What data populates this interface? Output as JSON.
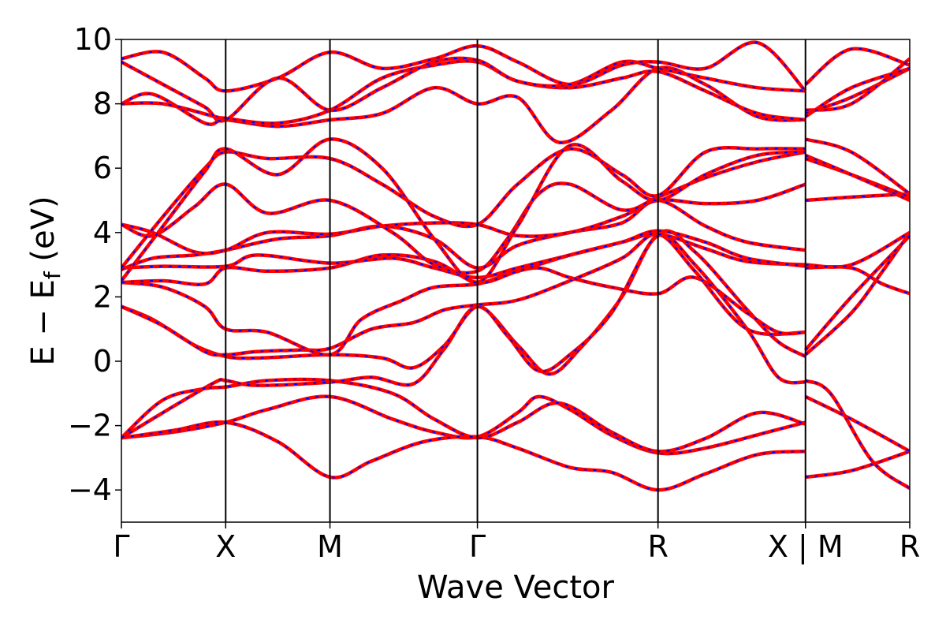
{
  "chart_data": {
    "type": "line",
    "title": "",
    "xlabel": "Wave Vector",
    "ylabel_main": "E − E",
    "ylabel_sub": "f",
    "ylabel_unit": " (eV)",
    "ylim": [
      -5,
      10
    ],
    "yticks": [
      -4,
      -2,
      0,
      2,
      4,
      6,
      8,
      10
    ],
    "ytick_labels": [
      "−4",
      "−2",
      "0",
      "2",
      "4",
      "6",
      "8",
      "10"
    ],
    "k_points": [
      {
        "label": "Γ",
        "x": 0.0
      },
      {
        "label": "X",
        "x": 1.0
      },
      {
        "label": "M",
        "x": 2.0
      },
      {
        "label": "Γ",
        "x": 3.414
      },
      {
        "label": "R",
        "x": 5.146
      },
      {
        "label": "X | M",
        "x": 6.56
      },
      {
        "label": "R",
        "x": 7.56
      }
    ],
    "grid": false,
    "legend": "none",
    "colors": {
      "series_a": "#0000ff",
      "series_b": "#ff0000"
    },
    "bands": [
      [
        [
          0,
          -2.38
        ],
        [
          0.5,
          -2.2
        ],
        [
          1.0,
          -1.9
        ],
        [
          1.4,
          -1.5
        ],
        [
          2.0,
          -1.1
        ],
        [
          2.6,
          -1.8
        ],
        [
          3.0,
          -2.2
        ],
        [
          3.414,
          -2.35
        ],
        [
          3.8,
          -1.6
        ],
        [
          4.0,
          -1.1
        ],
        [
          4.3,
          -1.5
        ],
        [
          4.7,
          -2.3
        ],
        [
          5.146,
          -2.85
        ],
        [
          5.6,
          -2.7
        ],
        [
          6.2,
          -2.2
        ],
        [
          6.56,
          -1.9
        ],
        [
          6.56,
          -3.6
        ],
        [
          7.0,
          -3.4
        ],
        [
          7.56,
          -2.8
        ]
      ],
      [
        [
          0,
          -2.38
        ],
        [
          0.5,
          -2.15
        ],
        [
          1.0,
          -1.9
        ],
        [
          1.5,
          -2.5
        ],
        [
          2.0,
          -3.6
        ],
        [
          2.4,
          -3.1
        ],
        [
          2.9,
          -2.5
        ],
        [
          3.414,
          -2.35
        ],
        [
          3.8,
          -2.7
        ],
        [
          4.3,
          -3.3
        ],
        [
          4.7,
          -3.45
        ],
        [
          5.146,
          -4.0
        ],
        [
          5.6,
          -3.5
        ],
        [
          6.1,
          -2.9
        ],
        [
          6.56,
          -2.8
        ],
        [
          6.56,
          -0.6
        ],
        [
          6.8,
          -1.0
        ],
        [
          7.2,
          -3.1
        ],
        [
          7.56,
          -3.95
        ]
      ],
      [
        [
          0,
          -2.38
        ],
        [
          0.4,
          -1.2
        ],
        [
          0.8,
          -0.85
        ],
        [
          1.0,
          -0.8
        ],
        [
          1.4,
          -0.6
        ],
        [
          2.0,
          -0.6
        ],
        [
          2.6,
          -1.0
        ],
        [
          3.0,
          -1.8
        ],
        [
          3.414,
          -2.38
        ],
        [
          3.8,
          -1.9
        ],
        [
          4.2,
          -1.3
        ],
        [
          4.7,
          -2.2
        ],
        [
          5.146,
          -2.8
        ],
        [
          5.6,
          -2.4
        ],
        [
          6.1,
          -1.6
        ],
        [
          6.56,
          -1.95
        ],
        [
          6.56,
          -1.1
        ],
        [
          7.0,
          -1.8
        ],
        [
          7.56,
          -2.8
        ]
      ],
      [
        [
          0,
          -2.38
        ],
        [
          0.5,
          -1.4
        ],
        [
          0.9,
          -0.65
        ],
        [
          1.0,
          -0.6
        ],
        [
          1.3,
          -0.75
        ],
        [
          2.0,
          -0.65
        ],
        [
          2.4,
          -0.5
        ],
        [
          2.8,
          -0.7
        ],
        [
          3.1,
          0.4
        ],
        [
          3.414,
          1.7
        ],
        [
          3.8,
          0.5
        ],
        [
          4.1,
          -0.4
        ],
        [
          4.4,
          0.4
        ],
        [
          4.8,
          2.0
        ],
        [
          5.146,
          3.9
        ],
        [
          5.5,
          3.0
        ],
        [
          6.0,
          1.0
        ],
        [
          6.3,
          -0.5
        ],
        [
          6.56,
          -0.65
        ],
        [
          6.56,
          0.2
        ],
        [
          7.0,
          1.5
        ],
        [
          7.3,
          2.8
        ],
        [
          7.56,
          4.0
        ]
      ],
      [
        [
          0,
          1.7
        ],
        [
          0.3,
          1.3
        ],
        [
          0.7,
          0.5
        ],
        [
          1.0,
          0.15
        ],
        [
          1.3,
          0.1
        ],
        [
          2.0,
          0.2
        ],
        [
          2.5,
          0.1
        ],
        [
          2.8,
          -0.2
        ],
        [
          3.1,
          0.5
        ],
        [
          3.414,
          1.7
        ],
        [
          3.7,
          0.8
        ],
        [
          4.0,
          -0.3
        ],
        [
          4.3,
          0.2
        ],
        [
          4.7,
          1.5
        ],
        [
          5.146,
          3.95
        ],
        [
          5.5,
          3.4
        ],
        [
          6.0,
          1.6
        ],
        [
          6.3,
          0.6
        ],
        [
          6.56,
          0.15
        ],
        [
          6.56,
          0.35
        ],
        [
          7.0,
          2.0
        ],
        [
          7.56,
          3.9
        ]
      ],
      [
        [
          0,
          1.7
        ],
        [
          0.4,
          1.1
        ],
        [
          0.8,
          0.3
        ],
        [
          1.0,
          0.2
        ],
        [
          1.3,
          0.3
        ],
        [
          1.7,
          0.35
        ],
        [
          2.0,
          0.4
        ],
        [
          2.4,
          1.0
        ],
        [
          2.8,
          1.2
        ],
        [
          3.1,
          1.6
        ],
        [
          3.414,
          1.75
        ],
        [
          3.8,
          1.9
        ],
        [
          4.3,
          2.5
        ],
        [
          4.8,
          3.2
        ],
        [
          5.146,
          3.95
        ],
        [
          5.5,
          2.8
        ],
        [
          6.0,
          1.0
        ],
        [
          6.56,
          0.9
        ]
      ],
      [
        [
          0,
          2.45
        ],
        [
          0.4,
          2.3
        ],
        [
          0.8,
          1.7
        ],
        [
          1.0,
          1.0
        ],
        [
          1.4,
          0.9
        ],
        [
          2.0,
          0.2
        ],
        [
          2.3,
          1.3
        ],
        [
          2.7,
          1.9
        ],
        [
          3.0,
          2.3
        ],
        [
          3.414,
          2.4
        ],
        [
          3.7,
          2.7
        ],
        [
          4.0,
          2.9
        ],
        [
          4.3,
          2.6
        ],
        [
          4.7,
          2.3
        ],
        [
          5.146,
          2.1
        ],
        [
          5.5,
          2.6
        ],
        [
          6.0,
          1.5
        ],
        [
          6.3,
          0.9
        ],
        [
          6.56,
          0.9
        ]
      ],
      [
        [
          0,
          2.45
        ],
        [
          0.4,
          2.5
        ],
        [
          0.8,
          2.4
        ],
        [
          1.0,
          2.9
        ],
        [
          1.4,
          2.8
        ],
        [
          2.0,
          2.9
        ],
        [
          2.5,
          3.3
        ],
        [
          3.0,
          3.1
        ],
        [
          3.414,
          2.45
        ],
        [
          3.8,
          2.8
        ],
        [
          4.3,
          3.3
        ],
        [
          4.8,
          3.7
        ],
        [
          5.146,
          3.95
        ],
        [
          5.6,
          3.5
        ],
        [
          6.0,
          3.1
        ],
        [
          6.56,
          3.0
        ],
        [
          6.56,
          2.9
        ],
        [
          7.0,
          2.9
        ],
        [
          7.3,
          2.4
        ],
        [
          7.56,
          2.1
        ]
      ],
      [
        [
          0,
          2.9
        ],
        [
          0.4,
          2.95
        ],
        [
          1.0,
          2.95
        ],
        [
          1.3,
          3.3
        ],
        [
          2.0,
          3.05
        ],
        [
          2.6,
          3.2
        ],
        [
          3.0,
          2.9
        ],
        [
          3.414,
          2.6
        ],
        [
          3.8,
          2.9
        ],
        [
          4.3,
          3.3
        ],
        [
          4.8,
          3.7
        ],
        [
          5.146,
          4.05
        ],
        [
          5.6,
          3.7
        ],
        [
          6.0,
          3.2
        ],
        [
          6.56,
          2.95
        ],
        [
          6.56,
          3.0
        ],
        [
          7.0,
          3.0
        ],
        [
          7.56,
          4.0
        ]
      ],
      [
        [
          0,
          2.85
        ],
        [
          0.3,
          3.2
        ],
        [
          0.7,
          3.3
        ],
        [
          1.0,
          3.45
        ],
        [
          1.5,
          3.8
        ],
        [
          2.0,
          3.9
        ],
        [
          2.5,
          4.2
        ],
        [
          3.0,
          3.8
        ],
        [
          3.414,
          2.9
        ],
        [
          3.8,
          3.6
        ],
        [
          4.3,
          4.0
        ],
        [
          4.8,
          4.3
        ],
        [
          5.146,
          5.0
        ],
        [
          5.6,
          4.2
        ],
        [
          6.0,
          3.7
        ],
        [
          6.56,
          3.45
        ]
      ],
      [
        [
          0,
          4.25
        ],
        [
          0.3,
          4.0
        ],
        [
          0.7,
          3.4
        ],
        [
          1.0,
          3.45
        ],
        [
          1.4,
          4.0
        ],
        [
          2.0,
          3.95
        ],
        [
          2.5,
          4.2
        ],
        [
          3.0,
          4.3
        ],
        [
          3.414,
          4.25
        ],
        [
          3.8,
          3.9
        ],
        [
          4.3,
          4.0
        ],
        [
          4.8,
          4.5
        ],
        [
          5.146,
          5.0
        ],
        [
          5.6,
          4.9
        ],
        [
          6.1,
          5.0
        ],
        [
          6.56,
          5.5
        ],
        [
          6.56,
          5.0
        ],
        [
          7.0,
          5.1
        ],
        [
          7.56,
          5.2
        ]
      ],
      [
        [
          0,
          4.25
        ],
        [
          0.3,
          3.9
        ],
        [
          0.7,
          4.8
        ],
        [
          1.0,
          5.5
        ],
        [
          1.4,
          4.6
        ],
        [
          2.0,
          5.0
        ],
        [
          2.6,
          4.0
        ],
        [
          3.0,
          3.0
        ],
        [
          3.414,
          2.8
        ],
        [
          3.7,
          3.8
        ],
        [
          4.0,
          5.2
        ],
        [
          4.3,
          5.5
        ],
        [
          4.8,
          4.7
        ],
        [
          5.146,
          5.1
        ],
        [
          5.6,
          5.7
        ],
        [
          6.1,
          6.2
        ],
        [
          6.56,
          6.5
        ],
        [
          6.56,
          6.3
        ],
        [
          7.0,
          5.8
        ],
        [
          7.56,
          5.1
        ]
      ],
      [
        [
          0,
          2.9
        ],
        [
          0.4,
          4.5
        ],
        [
          0.8,
          6.0
        ],
        [
          1.0,
          6.5
        ],
        [
          1.4,
          6.3
        ],
        [
          2.0,
          6.3
        ],
        [
          2.5,
          5.5
        ],
        [
          3.0,
          4.5
        ],
        [
          3.414,
          4.25
        ],
        [
          3.8,
          5.5
        ],
        [
          4.3,
          6.6
        ],
        [
          4.8,
          5.8
        ],
        [
          5.146,
          5.15
        ],
        [
          5.6,
          6.5
        ],
        [
          6.1,
          6.6
        ],
        [
          6.56,
          6.6
        ],
        [
          6.56,
          6.9
        ],
        [
          7.0,
          6.5
        ],
        [
          7.56,
          5.2
        ]
      ],
      [
        [
          0,
          2.5
        ],
        [
          0.4,
          4.2
        ],
        [
          0.8,
          5.9
        ],
        [
          1.0,
          6.6
        ],
        [
          1.5,
          5.8
        ],
        [
          2.0,
          6.9
        ],
        [
          2.5,
          6.0
        ],
        [
          3.0,
          3.8
        ],
        [
          3.414,
          2.45
        ],
        [
          3.8,
          4.2
        ],
        [
          4.3,
          6.7
        ],
        [
          4.8,
          5.6
        ],
        [
          5.146,
          5.0
        ],
        [
          5.6,
          5.8
        ],
        [
          6.1,
          6.4
        ],
        [
          6.56,
          6.5
        ],
        [
          6.56,
          6.4
        ],
        [
          7.0,
          5.8
        ],
        [
          7.56,
          5.0
        ]
      ],
      [
        [
          0,
          8.0
        ],
        [
          0.3,
          8.3
        ],
        [
          0.8,
          7.4
        ],
        [
          1.0,
          7.5
        ],
        [
          1.5,
          7.3
        ],
        [
          2.0,
          7.5
        ],
        [
          2.5,
          7.7
        ],
        [
          3.0,
          8.5
        ],
        [
          3.414,
          8.0
        ],
        [
          3.8,
          8.2
        ],
        [
          4.2,
          6.8
        ],
        [
          4.7,
          7.8
        ],
        [
          5.146,
          9.1
        ],
        [
          5.6,
          8.6
        ],
        [
          6.1,
          7.6
        ],
        [
          6.56,
          7.5
        ],
        [
          6.56,
          7.7
        ],
        [
          7.0,
          8.2
        ],
        [
          7.56,
          9.1
        ]
      ],
      [
        [
          0,
          8.0
        ],
        [
          0.4,
          8.0
        ],
        [
          0.9,
          7.6
        ],
        [
          1.0,
          7.55
        ],
        [
          1.5,
          7.4
        ],
        [
          2.0,
          7.8
        ],
        [
          2.5,
          8.8
        ],
        [
          3.0,
          9.2
        ],
        [
          3.414,
          9.3
        ],
        [
          3.8,
          8.7
        ],
        [
          4.3,
          8.5
        ],
        [
          4.8,
          8.8
        ],
        [
          5.146,
          9.0
        ],
        [
          5.6,
          8.4
        ],
        [
          6.1,
          7.7
        ],
        [
          6.56,
          7.5
        ],
        [
          6.56,
          7.6
        ],
        [
          7.0,
          8.5
        ],
        [
          7.56,
          9.1
        ]
      ],
      [
        [
          0,
          9.3
        ],
        [
          0.4,
          8.6
        ],
        [
          0.8,
          7.9
        ],
        [
          1.0,
          7.5
        ],
        [
          1.5,
          8.8
        ],
        [
          2.0,
          7.8
        ],
        [
          2.5,
          8.5
        ],
        [
          3.0,
          9.3
        ],
        [
          3.414,
          9.35
        ],
        [
          3.8,
          8.7
        ],
        [
          4.3,
          8.6
        ],
        [
          4.8,
          9.3
        ],
        [
          5.146,
          9.1
        ],
        [
          5.6,
          8.8
        ],
        [
          6.1,
          8.5
        ],
        [
          6.56,
          8.4
        ],
        [
          6.56,
          7.8
        ],
        [
          7.0,
          8.0
        ],
        [
          7.56,
          9.4
        ]
      ],
      [
        [
          0,
          9.4
        ],
        [
          0.4,
          9.6
        ],
        [
          0.8,
          8.8
        ],
        [
          1.0,
          8.4
        ],
        [
          1.5,
          8.8
        ],
        [
          2.0,
          9.6
        ],
        [
          2.5,
          9.1
        ],
        [
          3.0,
          9.4
        ],
        [
          3.414,
          9.8
        ],
        [
          3.8,
          9.3
        ],
        [
          4.3,
          8.6
        ],
        [
          4.8,
          9.2
        ],
        [
          5.146,
          9.3
        ],
        [
          5.6,
          9.1
        ],
        [
          6.1,
          9.9
        ],
        [
          6.56,
          8.4
        ],
        [
          6.56,
          8.6
        ],
        [
          7.0,
          9.7
        ],
        [
          7.56,
          9.2
        ]
      ]
    ]
  }
}
